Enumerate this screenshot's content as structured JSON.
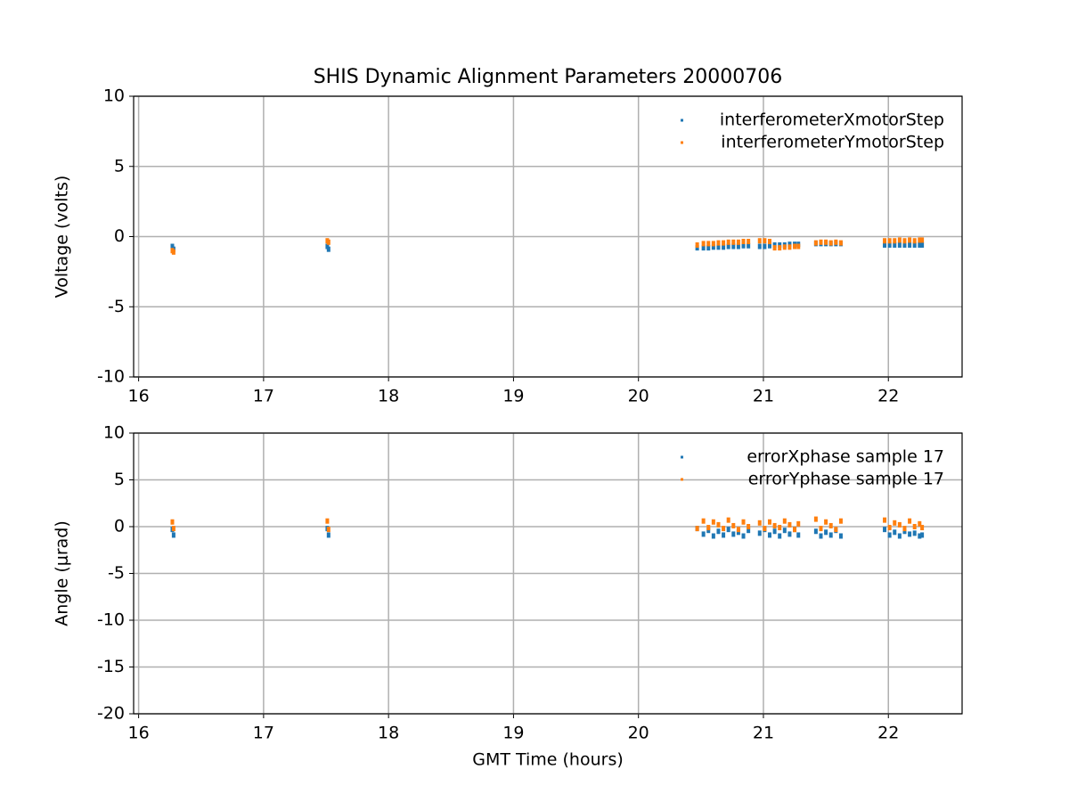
{
  "chart_data": [
    {
      "type": "scatter",
      "title": "SHIS Dynamic Alignment Parameters 20000706",
      "ylabel": "Voltage (volts)",
      "x": [
        16.27,
        16.28,
        17.51,
        17.52,
        20.47,
        20.52,
        20.56,
        20.6,
        20.64,
        20.68,
        20.72,
        20.76,
        20.8,
        20.84,
        20.88,
        20.97,
        21.01,
        21.05,
        21.09,
        21.13,
        21.17,
        21.21,
        21.25,
        21.28,
        21.42,
        21.46,
        21.5,
        21.54,
        21.58,
        21.62,
        21.97,
        22.01,
        22.05,
        22.09,
        22.13,
        22.17,
        22.21,
        22.25,
        22.27
      ],
      "series": [
        {
          "name": "interferometerXmotorStep",
          "color": "#1f77b4",
          "values": [
            -0.7,
            -0.9,
            -0.7,
            -0.9,
            -0.8,
            -0.8,
            -0.8,
            -0.75,
            -0.75,
            -0.75,
            -0.7,
            -0.7,
            -0.7,
            -0.65,
            -0.65,
            -0.7,
            -0.7,
            -0.65,
            -0.6,
            -0.6,
            -0.6,
            -0.55,
            -0.55,
            -0.55,
            -0.5,
            -0.5,
            -0.5,
            -0.5,
            -0.5,
            -0.5,
            -0.6,
            -0.6,
            -0.6,
            -0.6,
            -0.6,
            -0.6,
            -0.6,
            -0.6,
            -0.6
          ]
        },
        {
          "name": "interferometerYmotorStep",
          "color": "#ff7f0e",
          "values": [
            -1.0,
            -1.1,
            -0.3,
            -0.4,
            -0.6,
            -0.5,
            -0.5,
            -0.5,
            -0.45,
            -0.45,
            -0.4,
            -0.4,
            -0.4,
            -0.35,
            -0.35,
            -0.3,
            -0.3,
            -0.35,
            -0.8,
            -0.8,
            -0.75,
            -0.75,
            -0.7,
            -0.7,
            -0.45,
            -0.4,
            -0.4,
            -0.45,
            -0.4,
            -0.45,
            -0.3,
            -0.3,
            -0.3,
            -0.25,
            -0.3,
            -0.25,
            -0.3,
            -0.25,
            -0.25
          ]
        }
      ],
      "xlim": [
        15.96,
        22.59
      ],
      "ylim": [
        -10,
        10
      ],
      "xticks": [
        16,
        17,
        18,
        19,
        20,
        21,
        22
      ],
      "yticks": [
        -10,
        -5,
        0,
        5,
        10
      ],
      "grid": true,
      "legend": "upper right"
    },
    {
      "type": "scatter",
      "xlabel": "GMT Time (hours)",
      "ylabel": "Angle (μrad)",
      "x": [
        16.27,
        16.28,
        17.51,
        17.52,
        20.47,
        20.52,
        20.56,
        20.6,
        20.64,
        20.68,
        20.72,
        20.76,
        20.8,
        20.84,
        20.88,
        20.97,
        21.01,
        21.05,
        21.09,
        21.13,
        21.17,
        21.21,
        21.25,
        21.28,
        21.42,
        21.46,
        21.5,
        21.54,
        21.58,
        21.62,
        21.97,
        22.01,
        22.05,
        22.09,
        22.13,
        22.17,
        22.21,
        22.25,
        22.27
      ],
      "series": [
        {
          "name": "errorXphase sample 17",
          "color": "#1f77b4",
          "values": [
            -0.3,
            -0.9,
            -0.2,
            -0.9,
            -0.2,
            -0.8,
            -0.4,
            -1.0,
            -0.5,
            -0.9,
            -0.3,
            -0.8,
            -0.6,
            -1.0,
            -0.4,
            -0.7,
            -0.3,
            -0.9,
            -0.5,
            -1.0,
            -0.4,
            -0.8,
            -0.3,
            -0.9,
            -0.5,
            -1.0,
            -0.6,
            -0.9,
            -0.4,
            -1.0,
            -0.3,
            -0.9,
            -0.6,
            -1.0,
            -0.5,
            -0.8,
            -0.7,
            -1.0,
            -0.9
          ]
        },
        {
          "name": "errorYphase sample 17",
          "color": "#ff7f0e",
          "values": [
            0.5,
            -0.2,
            0.6,
            -0.3,
            -0.2,
            0.6,
            -0.1,
            0.5,
            0.2,
            -0.2,
            0.7,
            0.1,
            -0.3,
            0.5,
            0.0,
            0.4,
            -0.2,
            0.5,
            0.1,
            -0.1,
            0.6,
            0.2,
            -0.3,
            0.3,
            0.8,
            -0.2,
            0.5,
            0.1,
            -0.3,
            0.6,
            0.7,
            -0.1,
            0.4,
            0.2,
            -0.2,
            0.6,
            0.0,
            0.3,
            -0.1
          ]
        }
      ],
      "xlim": [
        15.96,
        22.59
      ],
      "ylim": [
        -20,
        10
      ],
      "xticks": [
        16,
        17,
        18,
        19,
        20,
        21,
        22
      ],
      "yticks": [
        -20,
        -15,
        -10,
        -5,
        0,
        5,
        10
      ],
      "grid": true,
      "legend": "upper right"
    }
  ]
}
